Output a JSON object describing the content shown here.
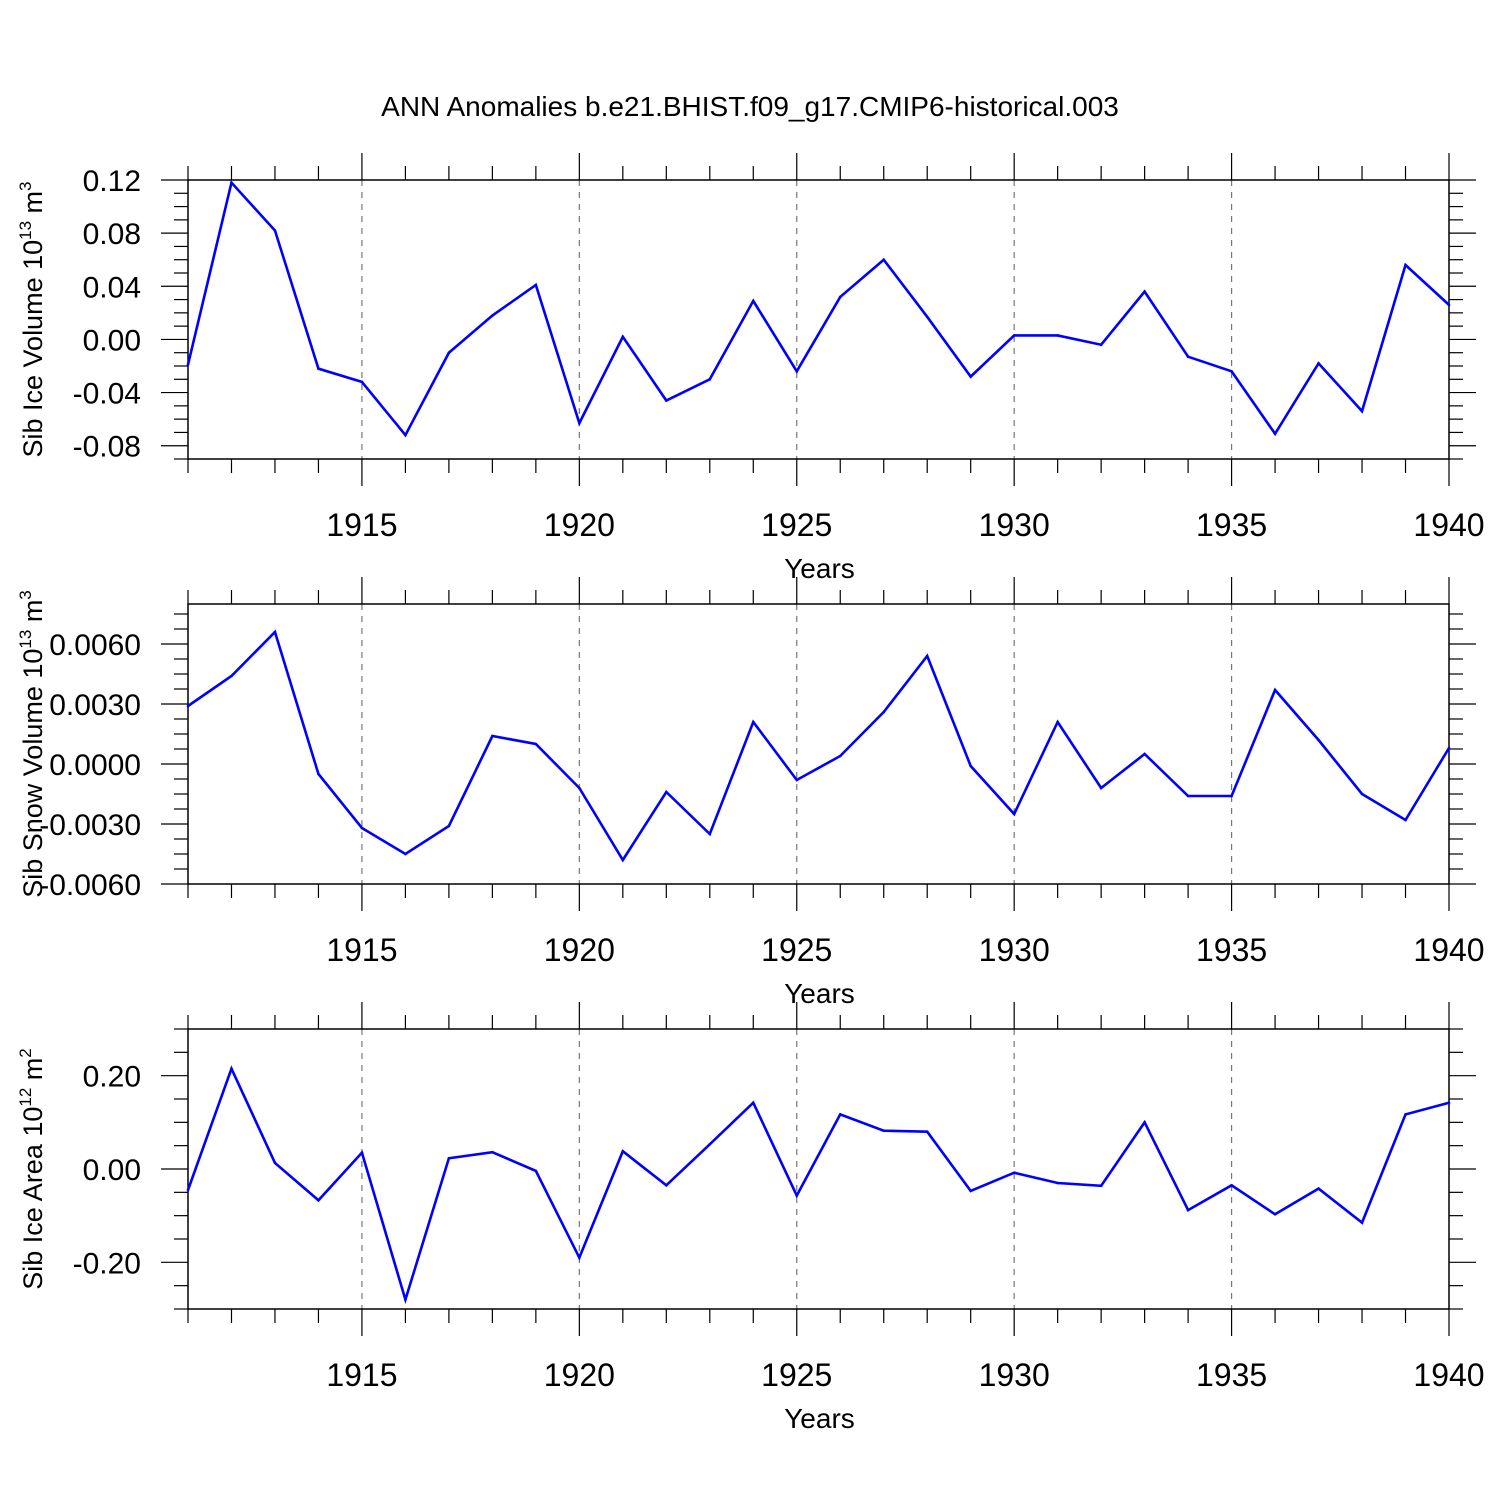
{
  "chart_data": {
    "title": "ANN Anomalies b.e21.BHIST.f09_g17.CMIP6-historical.003",
    "panels": [
      {
        "type": "line",
        "ylabel": {
          "base": "Sib Ice Volume 10",
          "exp": "13",
          "unit": " m",
          "unit_exp": "3"
        },
        "xlabel": "Years",
        "xlim": [
          1911,
          1940
        ],
        "ylim": [
          -0.09,
          0.12
        ],
        "yticks": [
          -0.08,
          -0.04,
          0.0,
          0.04,
          0.08,
          0.12
        ],
        "ytick_labels": [
          "-0.08",
          "-0.04",
          "0.00",
          "0.04",
          "0.08",
          "0.12"
        ],
        "xticks": [
          1915,
          1920,
          1925,
          1930,
          1935,
          1940
        ],
        "xtick_labels": [
          "1915",
          "1920",
          "1925",
          "1930",
          "1935",
          "1940"
        ],
        "color": "#0000ff",
        "series": [
          {
            "name": "Sib Ice Volume",
            "x": [
              1911,
              1912,
              1913,
              1914,
              1915,
              1916,
              1917,
              1918,
              1919,
              1920,
              1921,
              1922,
              1923,
              1924,
              1925,
              1926,
              1927,
              1928,
              1929,
              1930,
              1931,
              1932,
              1933,
              1934,
              1935,
              1936,
              1937,
              1938,
              1939,
              1940
            ],
            "y": [
              -0.019,
              0.118,
              0.082,
              -0.022,
              -0.032,
              -0.072,
              -0.01,
              0.018,
              0.041,
              -0.063,
              0.002,
              -0.046,
              -0.03,
              0.029,
              -0.024,
              0.032,
              0.06,
              0.017,
              -0.028,
              0.003,
              0.003,
              -0.004,
              0.036,
              -0.013,
              -0.024,
              -0.071,
              -0.018,
              -0.054,
              0.056,
              0.026
            ]
          }
        ]
      },
      {
        "type": "line",
        "ylabel": {
          "base": "Sib Snow Volume 10",
          "exp": "13",
          "unit": " m",
          "unit_exp": "3"
        },
        "xlabel": "Years",
        "xlim": [
          1911,
          1940
        ],
        "ylim": [
          -0.006,
          0.008
        ],
        "yticks": [
          -0.006,
          -0.003,
          0.0,
          0.003,
          0.006
        ],
        "ytick_labels": [
          "-0.0060",
          "-0.0030",
          "0.0000",
          "0.0030",
          "0.0060"
        ],
        "xticks": [
          1915,
          1920,
          1925,
          1930,
          1935,
          1940
        ],
        "xtick_labels": [
          "1915",
          "1920",
          "1925",
          "1930",
          "1935",
          "1940"
        ],
        "color": "#0000ff",
        "series": [
          {
            "name": "Sib Snow Volume",
            "x": [
              1911,
              1912,
              1913,
              1914,
              1915,
              1916,
              1917,
              1918,
              1919,
              1920,
              1921,
              1922,
              1923,
              1924,
              1925,
              1926,
              1927,
              1928,
              1929,
              1930,
              1931,
              1932,
              1933,
              1934,
              1935,
              1936,
              1937,
              1938,
              1939,
              1940
            ],
            "y": [
              0.0029,
              0.0044,
              0.0066,
              -0.0005,
              -0.0032,
              -0.0045,
              -0.0031,
              0.0014,
              0.001,
              -0.0012,
              -0.0048,
              -0.0014,
              -0.0035,
              0.0021,
              -0.0008,
              0.0004,
              0.0026,
              0.0054,
              -0.0001,
              -0.0025,
              0.0021,
              -0.0012,
              0.0005,
              -0.0016,
              -0.0016,
              0.0037,
              0.0012,
              -0.0015,
              -0.0028,
              0.0008
            ]
          }
        ]
      },
      {
        "type": "line",
        "ylabel": {
          "base": "Sib Ice Area 10",
          "exp": "12",
          "unit": " m",
          "unit_exp": "2"
        },
        "xlabel": "Years",
        "xlim": [
          1911,
          1940
        ],
        "ylim": [
          -0.3,
          0.3
        ],
        "yticks": [
          -0.2,
          0.0,
          0.2
        ],
        "ytick_labels": [
          "-0.20",
          "0.00",
          "0.20"
        ],
        "xticks": [
          1915,
          1920,
          1925,
          1930,
          1935,
          1940
        ],
        "xtick_labels": [
          "1915",
          "1920",
          "1925",
          "1930",
          "1935",
          "1940"
        ],
        "color": "#0000ff",
        "series": [
          {
            "name": "Sib Ice Area",
            "x": [
              1911,
              1912,
              1913,
              1914,
              1915,
              1916,
              1917,
              1918,
              1919,
              1920,
              1921,
              1922,
              1923,
              1924,
              1925,
              1926,
              1927,
              1928,
              1929,
              1930,
              1931,
              1932,
              1933,
              1934,
              1935,
              1936,
              1937,
              1938,
              1939,
              1940
            ],
            "y": [
              -0.045,
              0.215,
              0.013,
              -0.067,
              0.035,
              -0.28,
              0.023,
              0.036,
              -0.004,
              -0.19,
              0.038,
              -0.035,
              0.053,
              0.142,
              -0.057,
              0.117,
              0.082,
              0.08,
              -0.047,
              -0.008,
              -0.03,
              -0.036,
              0.1,
              -0.088,
              -0.035,
              -0.097,
              -0.042,
              -0.115,
              0.117,
              0.142
            ]
          }
        ]
      }
    ]
  }
}
